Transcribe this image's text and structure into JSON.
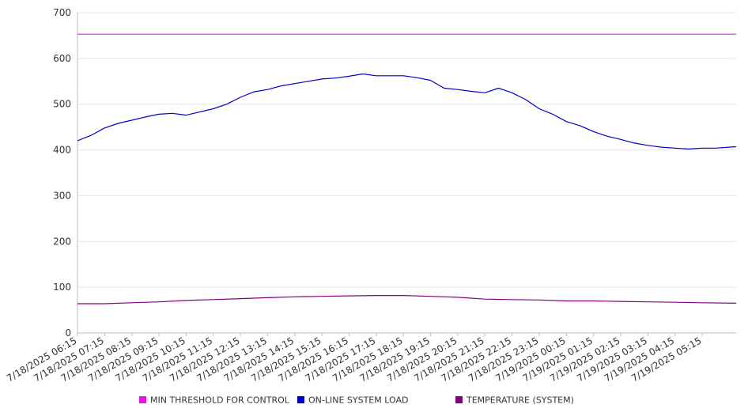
{
  "chart_data": {
    "type": "line",
    "title": "",
    "xlabel": "",
    "ylabel": "",
    "ylim": [
      0,
      700
    ],
    "yticks": [
      0,
      100,
      200,
      300,
      400,
      500,
      600,
      700
    ],
    "grid": "horizontal",
    "legend_position": "bottom",
    "x_range": [
      "7/18/2025 06:15",
      "7/19/2025 06:30"
    ],
    "x_ticks": [
      "7/18/2025 06:15",
      "7/18/2025 07:15",
      "7/18/2025 08:15",
      "7/18/2025 09:15",
      "7/18/2025 10:15",
      "7/18/2025 11:15",
      "7/18/2025 12:15",
      "7/18/2025 13:15",
      "7/18/2025 14:15",
      "7/18/2025 15:15",
      "7/18/2025 16:15",
      "7/18/2025 17:15",
      "7/18/2025 18:15",
      "7/18/2025 19:15",
      "7/18/2025 20:15",
      "7/18/2025 21:15",
      "7/18/2025 22:15",
      "7/18/2025 23:15",
      "7/19/2025 00:15",
      "7/19/2025 01:15",
      "7/19/2025 02:15",
      "7/19/2025 03:15",
      "7/19/2025 04:15",
      "7/19/2025 05:15"
    ],
    "series": [
      {
        "name": "MIN THRESHOLD FOR CONTROL",
        "color": "#e21be2",
        "x": [
          "7/18/2025 06:15",
          "7/19/2025 06:30"
        ],
        "values": [
          653,
          653
        ]
      },
      {
        "name": "ON-LINE SYSTEM LOAD",
        "color": "#0000cc",
        "x": [
          "7/18/2025 06:15",
          "7/18/2025 06:45",
          "7/18/2025 07:15",
          "7/18/2025 07:45",
          "7/18/2025 08:15",
          "7/18/2025 08:45",
          "7/18/2025 09:15",
          "7/18/2025 09:45",
          "7/18/2025 10:15",
          "7/18/2025 10:45",
          "7/18/2025 11:15",
          "7/18/2025 11:45",
          "7/18/2025 12:15",
          "7/18/2025 12:45",
          "7/18/2025 13:15",
          "7/18/2025 13:45",
          "7/18/2025 14:15",
          "7/18/2025 14:45",
          "7/18/2025 15:15",
          "7/18/2025 15:45",
          "7/18/2025 16:15",
          "7/18/2025 16:45",
          "7/18/2025 17:15",
          "7/18/2025 17:45",
          "7/18/2025 18:15",
          "7/18/2025 18:45",
          "7/18/2025 19:15",
          "7/18/2025 19:45",
          "7/18/2025 20:15",
          "7/18/2025 20:45",
          "7/18/2025 21:15",
          "7/18/2025 21:45",
          "7/18/2025 22:15",
          "7/18/2025 22:45",
          "7/18/2025 23:15",
          "7/18/2025 23:45",
          "7/19/2025 00:15",
          "7/19/2025 00:45",
          "7/19/2025 01:15",
          "7/19/2025 01:45",
          "7/19/2025 02:15",
          "7/19/2025 02:45",
          "7/19/2025 03:15",
          "7/19/2025 03:45",
          "7/19/2025 04:15",
          "7/19/2025 04:45",
          "7/19/2025 05:15",
          "7/19/2025 05:45",
          "7/19/2025 06:15",
          "7/19/2025 06:30"
        ],
        "values": [
          420,
          432,
          448,
          458,
          465,
          472,
          478,
          480,
          476,
          483,
          490,
          500,
          515,
          527,
          532,
          540,
          545,
          550,
          555,
          557,
          561,
          566,
          562,
          562,
          562,
          558,
          552,
          535,
          532,
          528,
          525,
          535,
          525,
          510,
          490,
          478,
          462,
          453,
          440,
          430,
          423,
          415,
          410,
          406,
          404,
          402,
          404,
          404,
          406,
          407
        ]
      },
      {
        "name": "TEMPERATURE (SYSTEM)",
        "color": "#800080",
        "x": [
          "7/18/2025 06:15",
          "7/18/2025 07:15",
          "7/18/2025 08:15",
          "7/18/2025 09:15",
          "7/18/2025 10:15",
          "7/18/2025 11:15",
          "7/18/2025 12:15",
          "7/18/2025 13:15",
          "7/18/2025 14:15",
          "7/18/2025 15:15",
          "7/18/2025 16:15",
          "7/18/2025 17:15",
          "7/18/2025 18:15",
          "7/18/2025 19:15",
          "7/18/2025 20:15",
          "7/18/2025 21:15",
          "7/18/2025 22:15",
          "7/18/2025 23:15",
          "7/19/2025 00:15",
          "7/19/2025 01:15",
          "7/19/2025 02:15",
          "7/19/2025 03:15",
          "7/19/2025 04:15",
          "7/19/2025 05:15",
          "7/19/2025 06:30"
        ],
        "values": [
          64,
          64,
          66,
          68,
          71,
          73,
          75,
          77,
          79,
          80,
          81,
          82,
          82,
          80,
          78,
          74,
          73,
          72,
          70,
          70,
          69,
          68,
          67,
          66,
          65
        ]
      }
    ]
  }
}
